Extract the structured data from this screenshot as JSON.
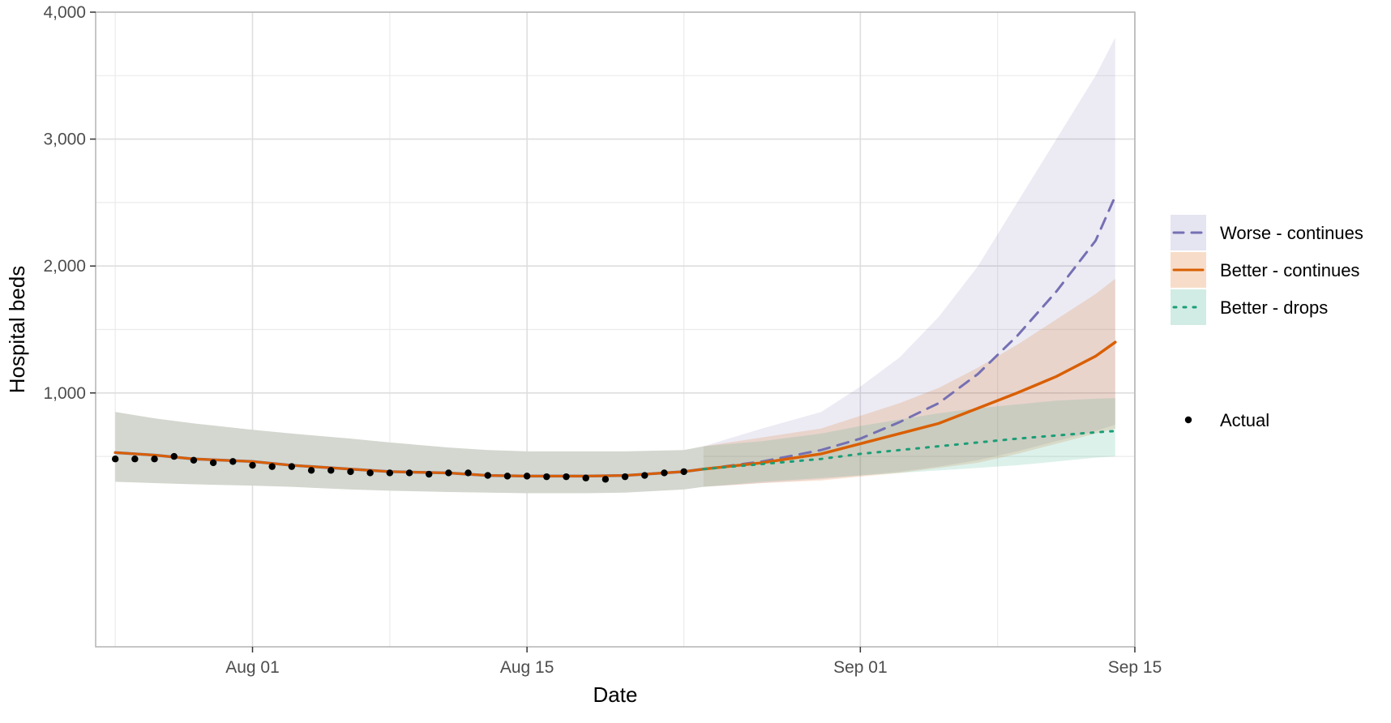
{
  "chart_data": {
    "type": "line",
    "title": "",
    "xlabel": "Date",
    "ylabel": "Hospital beds",
    "x_axis": {
      "type": "date",
      "range": [
        "2021-07-24",
        "2021-09-15"
      ],
      "tick_dates": [
        "2021-08-01",
        "2021-08-15",
        "2021-09-01",
        "2021-09-15"
      ],
      "tick_labels": [
        "Aug 01",
        "Aug 15",
        "Sep 01",
        "Sep 15"
      ],
      "minor_gridline_dates": [
        "2021-07-25",
        "2021-08-08",
        "2021-08-23",
        "2021-09-08"
      ]
    },
    "y_axis": {
      "range": [
        -1000,
        4000
      ],
      "ticks": [
        1000,
        2000,
        3000,
        4000
      ],
      "tick_labels": [
        "1,000",
        "2,000",
        "3,000",
        "4,000"
      ],
      "minor_gridlines": [
        500,
        1500,
        2500,
        3500
      ]
    },
    "grid": true,
    "legend_position": "right",
    "legend": {
      "series_entries": [
        "Worse - continues",
        "Better - continues",
        "Better - drops"
      ],
      "points_entry": "Actual"
    },
    "colors": {
      "worse_continues": "#7570b3",
      "better_continues": "#d95f02",
      "better_drops": "#1b9e77",
      "actual": "#000000",
      "shared_band": "#d3d7cf"
    },
    "shared_fit": {
      "x": [
        "2021-07-25",
        "2021-07-27",
        "2021-07-29",
        "2021-08-01",
        "2021-08-03",
        "2021-08-06",
        "2021-08-08",
        "2021-08-11",
        "2021-08-13",
        "2021-08-15",
        "2021-08-18",
        "2021-08-20",
        "2021-08-23",
        "2021-08-24"
      ],
      "y": [
        530,
        510,
        480,
        460,
        430,
        400,
        380,
        370,
        350,
        345,
        345,
        350,
        380,
        400
      ],
      "lower": [
        300,
        290,
        280,
        270,
        260,
        240,
        230,
        220,
        215,
        210,
        210,
        215,
        240,
        260
      ],
      "upper": [
        850,
        800,
        760,
        710,
        680,
        640,
        610,
        570,
        550,
        540,
        540,
        540,
        550,
        580
      ]
    },
    "series": [
      {
        "name": "Worse - continues",
        "line_style": "dashed",
        "x": [
          "2021-08-24",
          "2021-08-27",
          "2021-08-30",
          "2021-09-01",
          "2021-09-03",
          "2021-09-05",
          "2021-09-07",
          "2021-09-09",
          "2021-09-11",
          "2021-09-13",
          "2021-09-14"
        ],
        "y": [
          400,
          460,
          550,
          640,
          770,
          920,
          1150,
          1450,
          1800,
          2200,
          2550
        ],
        "lower": [
          260,
          290,
          320,
          350,
          380,
          420,
          470,
          540,
          620,
          700,
          750
        ],
        "upper": [
          580,
          720,
          850,
          1050,
          1280,
          1600,
          2000,
          2500,
          3000,
          3500,
          3800
        ]
      },
      {
        "name": "Better - continues",
        "line_style": "solid",
        "x": [
          "2021-08-24",
          "2021-08-27",
          "2021-08-30",
          "2021-09-01",
          "2021-09-03",
          "2021-09-05",
          "2021-09-07",
          "2021-09-09",
          "2021-09-11",
          "2021-09-13",
          "2021-09-14"
        ],
        "y": [
          400,
          450,
          520,
          600,
          680,
          760,
          880,
          1000,
          1130,
          1290,
          1400
        ],
        "lower": [
          260,
          290,
          310,
          340,
          370,
          410,
          450,
          520,
          600,
          680,
          720
        ],
        "upper": [
          580,
          650,
          720,
          820,
          920,
          1040,
          1200,
          1380,
          1580,
          1780,
          1900
        ]
      },
      {
        "name": "Better - drops",
        "line_style": "dotted",
        "x": [
          "2021-08-24",
          "2021-08-27",
          "2021-08-30",
          "2021-09-01",
          "2021-09-03",
          "2021-09-05",
          "2021-09-07",
          "2021-09-09",
          "2021-09-11",
          "2021-09-13",
          "2021-09-14"
        ],
        "y": [
          400,
          440,
          480,
          520,
          550,
          580,
          610,
          640,
          665,
          690,
          700
        ],
        "lower": [
          260,
          300,
          330,
          350,
          370,
          390,
          410,
          430,
          460,
          490,
          500
        ],
        "upper": [
          580,
          620,
          680,
          740,
          790,
          840,
          880,
          910,
          940,
          955,
          960
        ]
      }
    ],
    "actual_points": {
      "name": "Actual",
      "x": [
        "2021-07-25",
        "2021-07-26",
        "2021-07-27",
        "2021-07-28",
        "2021-07-29",
        "2021-07-30",
        "2021-07-31",
        "2021-08-01",
        "2021-08-02",
        "2021-08-03",
        "2021-08-04",
        "2021-08-05",
        "2021-08-06",
        "2021-08-07",
        "2021-08-08",
        "2021-08-09",
        "2021-08-10",
        "2021-08-11",
        "2021-08-12",
        "2021-08-13",
        "2021-08-14",
        "2021-08-15",
        "2021-08-16",
        "2021-08-17",
        "2021-08-18",
        "2021-08-19",
        "2021-08-20",
        "2021-08-21",
        "2021-08-22",
        "2021-08-23"
      ],
      "y": [
        480,
        480,
        480,
        500,
        470,
        450,
        460,
        430,
        420,
        420,
        390,
        390,
        380,
        370,
        370,
        370,
        360,
        370,
        370,
        350,
        345,
        345,
        340,
        340,
        330,
        320,
        340,
        350,
        370,
        380
      ]
    }
  }
}
